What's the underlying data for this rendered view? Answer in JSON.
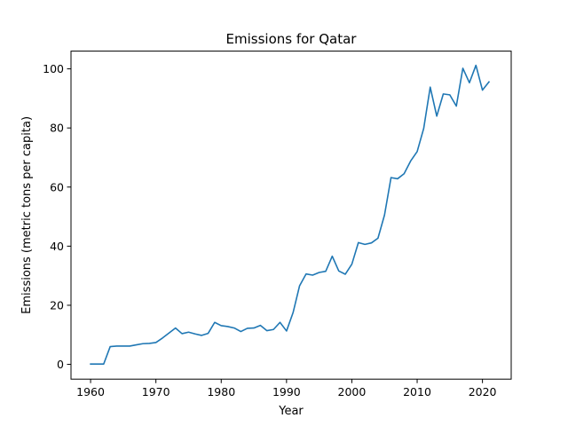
{
  "chart_data": {
    "type": "line",
    "title": "Emissions for Qatar",
    "xlabel": "Year",
    "ylabel": "Emissions (metric tons per capita)",
    "xlim": [
      1957,
      2024.4
    ],
    "ylim": [
      -5,
      106
    ],
    "x_ticks": [
      1960,
      1970,
      1980,
      1990,
      2000,
      2010,
      2020
    ],
    "y_ticks": [
      0,
      20,
      40,
      60,
      80,
      100
    ],
    "grid": false,
    "series": [
      {
        "color": "#1f77b4",
        "x": [
          1960,
          1961,
          1962,
          1963,
          1964,
          1965,
          1966,
          1967,
          1968,
          1969,
          1970,
          1971,
          1972,
          1973,
          1974,
          1975,
          1976,
          1977,
          1978,
          1979,
          1980,
          1981,
          1982,
          1983,
          1984,
          1985,
          1986,
          1987,
          1988,
          1989,
          1990,
          1991,
          1992,
          1993,
          1994,
          1995,
          1996,
          1997,
          1998,
          1999,
          2000,
          2001,
          2002,
          2003,
          2004,
          2005,
          2006,
          2007,
          2008,
          2009,
          2010,
          2011,
          2012,
          2013,
          2014,
          2015,
          2016,
          2017,
          2018,
          2019,
          2020,
          2021
        ],
        "y": [
          0.1,
          0.1,
          0.1,
          6.0,
          6.2,
          6.2,
          6.2,
          6.6,
          7.0,
          7.1,
          7.4,
          8.9,
          10.6,
          12.3,
          10.4,
          10.9,
          10.3,
          9.8,
          10.5,
          14.2,
          13.1,
          12.8,
          12.3,
          11.1,
          12.2,
          12.3,
          13.2,
          11.4,
          11.8,
          14.2,
          11.3,
          17.5,
          26.6,
          30.6,
          30.2,
          31.1,
          31.5,
          36.6,
          31.6,
          30.5,
          33.9,
          41.2,
          40.6,
          41.1,
          42.7,
          50.5,
          63.2,
          62.8,
          64.5,
          68.8,
          72.0,
          79.8,
          93.8,
          84.0,
          91.5,
          91.2,
          87.4,
          100.2,
          95.3,
          101.2,
          92.8,
          95.6
        ]
      }
    ]
  }
}
